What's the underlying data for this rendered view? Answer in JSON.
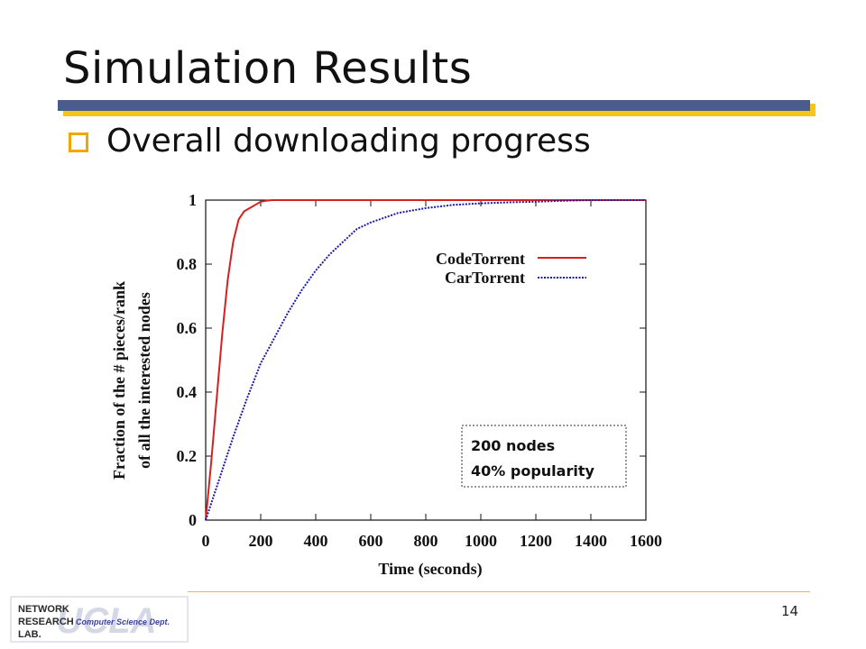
{
  "slide": {
    "title": "Simulation Results",
    "bullet": "Overall downloading progress",
    "page_number": "14"
  },
  "logo": {
    "line1": "NETWORK",
    "line2": "RESEARCH",
    "line3": "LAB.",
    "dept": "Computer Science Dept.",
    "watermark": "UCLA"
  },
  "chart_data": {
    "type": "line",
    "xlabel": "Time (seconds)",
    "ylabel_line1": "Fraction of the # pieces/rank",
    "ylabel_line2": "of all the interested nodes",
    "xlim": [
      0,
      1600
    ],
    "ylim": [
      0,
      1
    ],
    "xticks": [
      0,
      200,
      400,
      600,
      800,
      1000,
      1200,
      1400,
      1600
    ],
    "yticks": [
      0,
      0.2,
      0.4,
      0.6,
      0.8,
      1
    ],
    "ytick_labels": [
      "0",
      "0.2",
      "0.4",
      "0.6",
      "0.8",
      "1"
    ],
    "grid": false,
    "legend_position": "top-right",
    "annotation_line1": "200 nodes",
    "annotation_line2": "40% popularity",
    "series": [
      {
        "name": "CodeTorrent",
        "color": "#d62020",
        "style": "solid",
        "x": [
          0,
          20,
          40,
          60,
          80,
          100,
          120,
          140,
          160,
          180,
          200,
          220,
          240,
          1600
        ],
        "y": [
          0,
          0.18,
          0.38,
          0.58,
          0.75,
          0.87,
          0.94,
          0.965,
          0.975,
          0.985,
          0.995,
          0.998,
          1.0,
          1.0
        ]
      },
      {
        "name": "CarTorrent",
        "color": "#1a1aa8",
        "style": "dotted",
        "x": [
          0,
          50,
          100,
          150,
          200,
          250,
          300,
          350,
          400,
          450,
          500,
          550,
          600,
          700,
          800,
          900,
          1000,
          1100,
          1200,
          1300,
          1400,
          1600
        ],
        "y": [
          0,
          0.13,
          0.26,
          0.38,
          0.49,
          0.57,
          0.65,
          0.72,
          0.78,
          0.83,
          0.87,
          0.91,
          0.93,
          0.96,
          0.975,
          0.985,
          0.99,
          0.993,
          0.995,
          0.998,
          1.0,
          1.0
        ]
      }
    ]
  }
}
